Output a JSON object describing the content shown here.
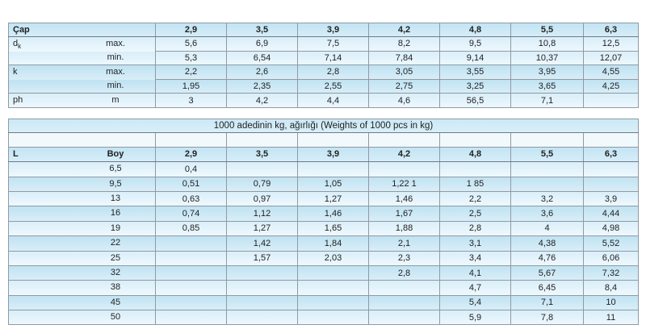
{
  "colors": {
    "header_blue": "#c2e4f3",
    "row_blue": "#bfe2f2",
    "row_light": "#d9eefa",
    "empty_row": "#f1f9fd",
    "border_gray": "#8f9aa2",
    "text": "#222222"
  },
  "top_table": {
    "corner_label": "Çap",
    "columns": [
      "2,9",
      "3,5",
      "3,9",
      "4,2",
      "4,8",
      "5,5",
      "6,3"
    ],
    "groups": [
      {
        "label": "d",
        "label_sub": "k",
        "subs": [
          "max.",
          "min."
        ],
        "values": [
          [
            "5,6",
            "6,9",
            "7,5",
            "8,2",
            "9,5",
            "10,8",
            "12,5"
          ],
          [
            "5,3",
            "6,54",
            "7,14",
            "7,84",
            "9,14",
            "10,37",
            "12,07"
          ]
        ]
      },
      {
        "label": "k",
        "label_sub": "",
        "subs": [
          "max.",
          "min."
        ],
        "values": [
          [
            "2,2",
            "2,6",
            "2,8",
            "3,05",
            "3,55",
            "3,95",
            "4,55"
          ],
          [
            "1,95",
            "2,35",
            "2,55",
            "2,75",
            "3,25",
            "3,65",
            "4,25"
          ]
        ]
      },
      {
        "label": "ph",
        "label_sub": "",
        "subs": [
          "m"
        ],
        "values": [
          [
            "3",
            "4,2",
            "4,4",
            "4,6",
            "56,5",
            "7,1",
            ""
          ]
        ]
      }
    ]
  },
  "bottom_table": {
    "title": "1000 adedinin kg, ağırlığı (Weights of 1000 pcs in kg)",
    "col_header_left": "L",
    "col_header_boy": "Boy",
    "columns": [
      "2,9",
      "3,5",
      "3,9",
      "4,2",
      "4,8",
      "5,5",
      "6,3"
    ],
    "rows": [
      {
        "boy": "6,5",
        "values": [
          "0,4",
          "",
          "",
          "",
          "",
          "",
          ""
        ]
      },
      {
        "boy": "9,5",
        "values": [
          "0,51",
          "0,79",
          "1,05",
          "1,22 1",
          "1 85",
          "",
          ""
        ]
      },
      {
        "boy": "13",
        "values": [
          "0,63",
          "0,97",
          "1,27",
          "1,46",
          "2,2",
          "3,2",
          "3,9"
        ]
      },
      {
        "boy": "16",
        "values": [
          "0,74",
          "1,12",
          "1,46",
          "1,67",
          "2,5",
          "3,6",
          "4,44"
        ]
      },
      {
        "boy": "19",
        "values": [
          "0,85",
          "1,27",
          "1,65",
          "1,88",
          "2,8",
          "4",
          "4,98"
        ]
      },
      {
        "boy": "22",
        "values": [
          "",
          "1,42",
          "1,84",
          "2,1",
          "3,1",
          "4,38",
          "5,52"
        ]
      },
      {
        "boy": "25",
        "values": [
          "",
          "1,57",
          "2,03",
          "2,3",
          "3,4",
          "4,76",
          "6,06"
        ]
      },
      {
        "boy": "32",
        "values": [
          "",
          "",
          "",
          "2,8",
          "4,1",
          "5,67",
          "7,32"
        ]
      },
      {
        "boy": "38",
        "values": [
          "",
          "",
          "",
          "",
          "4,7",
          "6,45",
          "8,4"
        ]
      },
      {
        "boy": "45",
        "values": [
          "",
          "",
          "",
          "",
          "5,4",
          "7,1",
          "10"
        ]
      },
      {
        "boy": "50",
        "values": [
          "",
          "",
          "",
          "",
          "5,9",
          "7,8",
          "11"
        ]
      }
    ]
  }
}
